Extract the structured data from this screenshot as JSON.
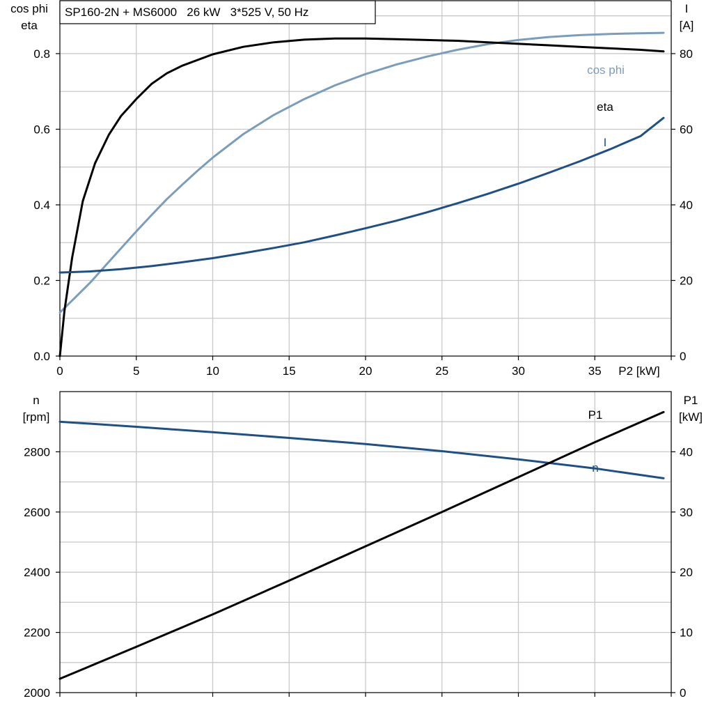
{
  "colors": {
    "eta": "#000000",
    "cosphi": "#7a9cbd",
    "current": "#1e4f86",
    "speed": "#1e4f86",
    "p1": "#000000",
    "grid": "#c8c8c8"
  },
  "chart_data": [
    {
      "type": "line",
      "title": "SP160-2N + MS6000   26 kW   3*525 V, 50 Hz",
      "xlabel": "P2 [kW]",
      "xlim": [
        0,
        40
      ],
      "x_ticks": [
        "0",
        "5",
        "10",
        "15",
        "20",
        "25",
        "30",
        "35"
      ],
      "ylabel_left": [
        "cos phi",
        "eta"
      ],
      "ylim_left": [
        0,
        0.94
      ],
      "y_ticks_left": [
        "0.0",
        "0.2",
        "0.4",
        "0.6",
        "0.8"
      ],
      "ylabel_right": [
        "I",
        "[A]"
      ],
      "ylim_right": [
        0,
        94
      ],
      "y_ticks_right": [
        "0",
        "20",
        "40",
        "60",
        "80"
      ],
      "grid": true,
      "series": [
        {
          "name": "cos phi",
          "axis": "left",
          "x": [
            0,
            1,
            2,
            3,
            4,
            5,
            6,
            7,
            8,
            9,
            10,
            12,
            14,
            16,
            18,
            20,
            22,
            24,
            26,
            28,
            30,
            32,
            34,
            36,
            38,
            39.5
          ],
          "y": [
            0.115,
            0.155,
            0.195,
            0.24,
            0.285,
            0.33,
            0.373,
            0.415,
            0.453,
            0.49,
            0.525,
            0.587,
            0.638,
            0.68,
            0.716,
            0.746,
            0.771,
            0.792,
            0.81,
            0.825,
            0.836,
            0.844,
            0.849,
            0.852,
            0.854,
            0.855
          ]
        },
        {
          "name": "eta",
          "axis": "left",
          "x": [
            0,
            0.3,
            0.8,
            1.5,
            2.3,
            3.2,
            4,
            5,
            6,
            7,
            8,
            10,
            12,
            14,
            16,
            18,
            20,
            22,
            24,
            26,
            28,
            30,
            32,
            34,
            36,
            38,
            39.5
          ],
          "y": [
            0.0,
            0.12,
            0.26,
            0.41,
            0.51,
            0.585,
            0.635,
            0.68,
            0.72,
            0.748,
            0.768,
            0.798,
            0.818,
            0.83,
            0.837,
            0.84,
            0.84,
            0.838,
            0.836,
            0.834,
            0.83,
            0.826,
            0.822,
            0.818,
            0.814,
            0.81,
            0.806
          ]
        },
        {
          "name": "I",
          "axis": "right",
          "x": [
            0,
            2,
            4,
            6,
            8,
            10,
            12,
            14,
            16,
            18,
            20,
            22,
            24,
            26,
            28,
            30,
            32,
            34,
            36,
            38,
            39.5
          ],
          "y": [
            22.1,
            22.4,
            23.0,
            23.8,
            24.8,
            25.9,
            27.2,
            28.6,
            30.1,
            31.9,
            33.8,
            35.8,
            38.0,
            40.4,
            42.9,
            45.6,
            48.5,
            51.5,
            54.7,
            58.2,
            63.0
          ]
        }
      ]
    },
    {
      "type": "line",
      "xlim": [
        0,
        40
      ],
      "ylabel_left": [
        "n",
        "[rpm]"
      ],
      "ylim_left": [
        2000,
        3000
      ],
      "y_ticks_left": [
        "2000",
        "2200",
        "2400",
        "2600",
        "2800"
      ],
      "ylabel_right": [
        "P1",
        "[kW]"
      ],
      "ylim_right": [
        0,
        50
      ],
      "y_ticks_right": [
        "0",
        "10",
        "20",
        "30",
        "40"
      ],
      "grid": true,
      "series": [
        {
          "name": "n",
          "axis": "left",
          "x": [
            0,
            5,
            10,
            15,
            20,
            25,
            30,
            35,
            39.5
          ],
          "y": [
            2900,
            2883,
            2865,
            2846,
            2826,
            2802,
            2775,
            2745,
            2712
          ]
        },
        {
          "name": "P1",
          "axis": "right",
          "x": [
            0,
            5,
            10,
            15,
            20,
            25,
            30,
            35,
            39.5
          ],
          "y": [
            2.3,
            7.6,
            13.0,
            18.6,
            24.3,
            30.0,
            35.8,
            41.6,
            46.6
          ]
        }
      ]
    }
  ]
}
